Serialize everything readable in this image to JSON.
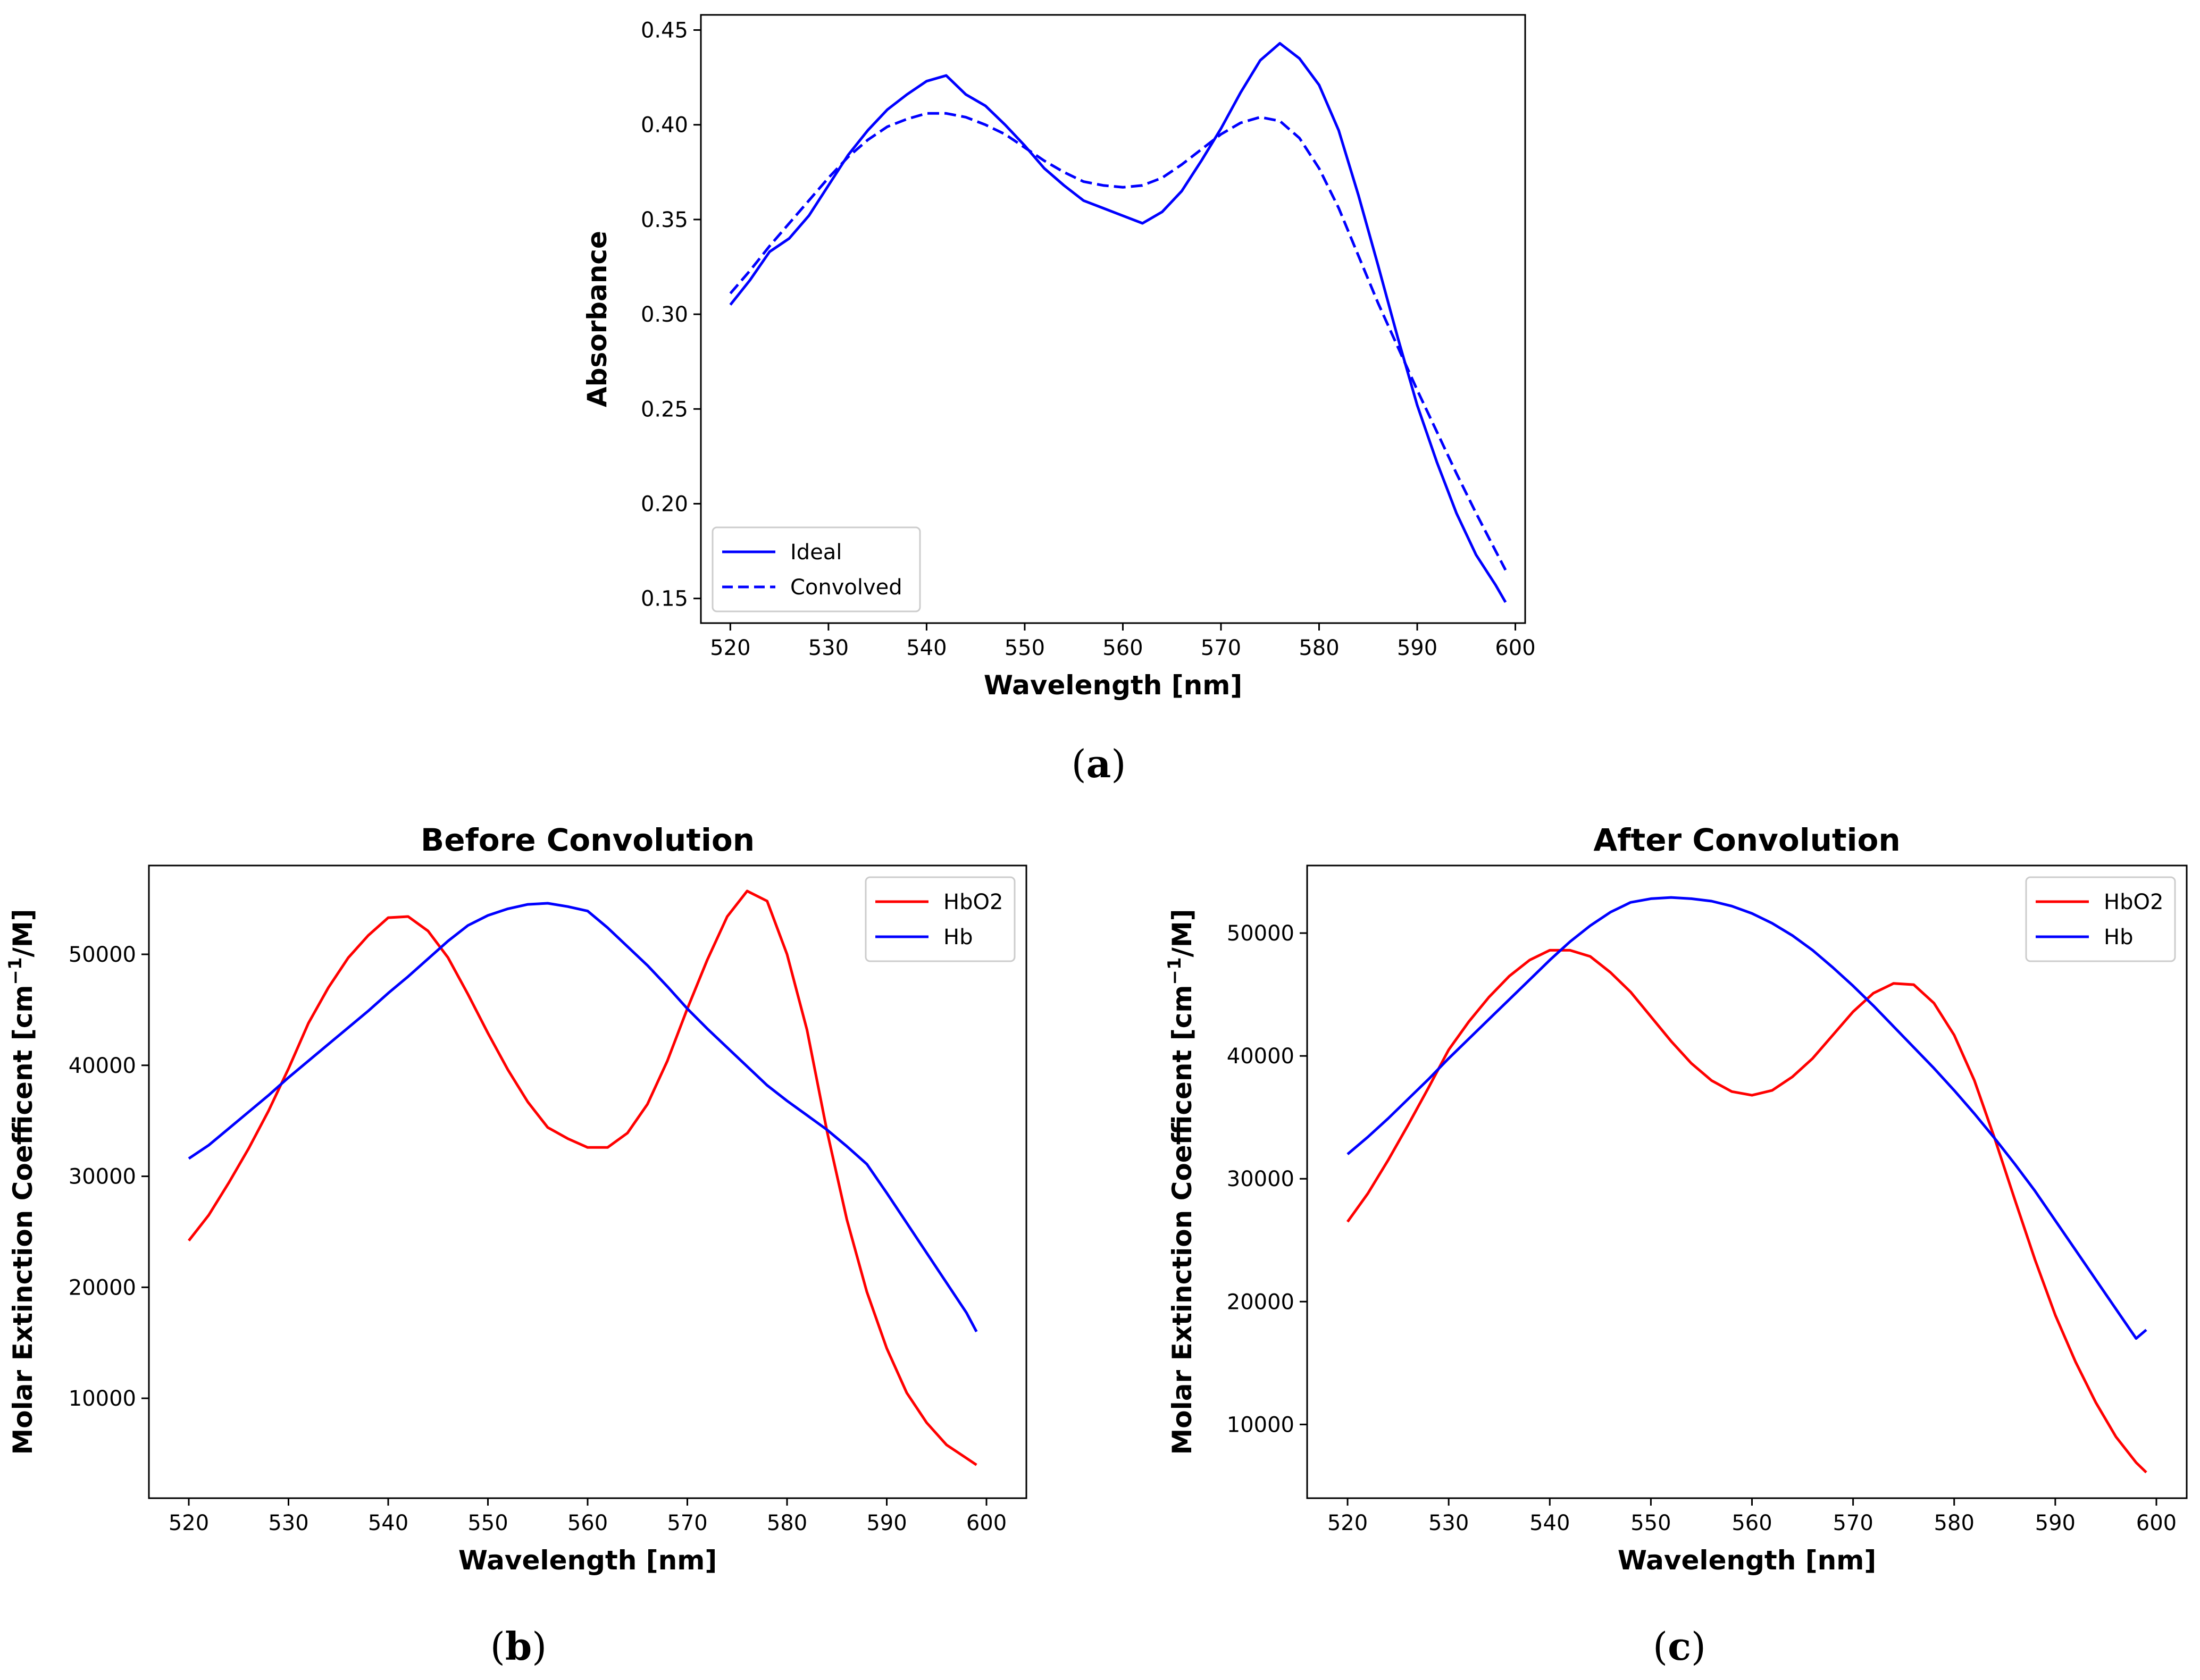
{
  "chart_data": [
    {
      "type": "line",
      "panel_label": "a",
      "title": "",
      "xlabel": "Wavelength [nm]",
      "ylabel": "Absorbance",
      "xlim": [
        517,
        601
      ],
      "ylim": [
        0.137,
        0.458
      ],
      "xticks": [
        520,
        530,
        540,
        550,
        560,
        570,
        580,
        590,
        600
      ],
      "yticks": [
        0.15,
        0.2,
        0.25,
        0.3,
        0.35,
        0.4,
        0.45
      ],
      "ytick_decimals": 2,
      "legend_position": "lower-left",
      "x": [
        520,
        522,
        524,
        526,
        528,
        530,
        532,
        534,
        536,
        538,
        540,
        542,
        544,
        546,
        548,
        550,
        552,
        554,
        556,
        558,
        560,
        562,
        564,
        566,
        568,
        570,
        572,
        574,
        576,
        578,
        580,
        582,
        584,
        586,
        588,
        590,
        592,
        594,
        596,
        598,
        599
      ],
      "series": [
        {
          "name": "Ideal",
          "color": "#0000ff",
          "style": "solid",
          "values": [
            0.305,
            0.318,
            0.333,
            0.34,
            0.352,
            0.368,
            0.384,
            0.397,
            0.408,
            0.416,
            0.423,
            0.426,
            0.416,
            0.41,
            0.4,
            0.389,
            0.377,
            0.368,
            0.36,
            0.356,
            0.352,
            0.348,
            0.354,
            0.365,
            0.381,
            0.398,
            0.417,
            0.434,
            0.443,
            0.435,
            0.421,
            0.397,
            0.363,
            0.326,
            0.288,
            0.252,
            0.222,
            0.195,
            0.173,
            0.157,
            0.148
          ]
        },
        {
          "name": "Convolved",
          "color": "#0000ff",
          "style": "dashed",
          "values": [
            0.311,
            0.323,
            0.336,
            0.348,
            0.36,
            0.372,
            0.383,
            0.392,
            0.399,
            0.403,
            0.406,
            0.406,
            0.404,
            0.4,
            0.395,
            0.388,
            0.381,
            0.375,
            0.37,
            0.368,
            0.367,
            0.368,
            0.372,
            0.379,
            0.387,
            0.395,
            0.401,
            0.404,
            0.402,
            0.393,
            0.377,
            0.356,
            0.331,
            0.306,
            0.283,
            0.26,
            0.238,
            0.216,
            0.195,
            0.175,
            0.165
          ]
        }
      ]
    },
    {
      "type": "line",
      "panel_label": "b",
      "title": "Before Convolution",
      "xlabel": "Wavelength [nm]",
      "ylabel": "Molar Extinction Coefficent [cm",
      "ylabel_sup": "−1",
      "ylabel_end": "/M]",
      "xlim": [
        516,
        604
      ],
      "ylim": [
        1000,
        58000
      ],
      "xticks": [
        520,
        530,
        540,
        550,
        560,
        570,
        580,
        590,
        600
      ],
      "yticks": [
        10000,
        20000,
        30000,
        40000,
        50000
      ],
      "ytick_decimals": 0,
      "legend_position": "upper-right",
      "x": [
        520,
        522,
        524,
        526,
        528,
        530,
        532,
        534,
        536,
        538,
        540,
        542,
        544,
        546,
        548,
        550,
        552,
        554,
        556,
        558,
        560,
        562,
        564,
        566,
        568,
        570,
        572,
        574,
        576,
        578,
        580,
        582,
        584,
        586,
        588,
        590,
        592,
        594,
        596,
        598,
        599
      ],
      "series": [
        {
          "name": "HbO2",
          "color": "#ff0000",
          "style": "solid",
          "values": [
            24200,
            26500,
            29400,
            32500,
            35900,
            39700,
            43800,
            47000,
            49700,
            51700,
            53300,
            53400,
            52100,
            49700,
            46400,
            42900,
            39600,
            36700,
            34400,
            33400,
            32600,
            32600,
            33900,
            36500,
            40400,
            45100,
            49500,
            53400,
            55700,
            54800,
            50000,
            43200,
            34100,
            26100,
            19600,
            14500,
            10500,
            7800,
            5800,
            4600,
            4000
          ]
        },
        {
          "name": "Hb",
          "color": "#0000ff",
          "style": "solid",
          "values": [
            31600,
            32800,
            34300,
            35800,
            37300,
            38900,
            40400,
            41900,
            43400,
            44900,
            46500,
            48000,
            49600,
            51200,
            52600,
            53500,
            54100,
            54500,
            54600,
            54300,
            53900,
            52400,
            50700,
            49000,
            47100,
            45100,
            43300,
            41600,
            39900,
            38200,
            36800,
            35500,
            34200,
            32700,
            31100,
            28500,
            25800,
            23100,
            20400,
            17700,
            16000
          ]
        }
      ]
    },
    {
      "type": "line",
      "panel_label": "c",
      "title": "After Convolution",
      "xlabel": "Wavelength [nm]",
      "ylabel": "Molar Extinction Coefficent [cm",
      "ylabel_sup": "−1",
      "ylabel_end": "/M]",
      "xlim": [
        516,
        603
      ],
      "ylim": [
        4000,
        55500
      ],
      "xticks": [
        520,
        530,
        540,
        550,
        560,
        570,
        580,
        590,
        600
      ],
      "yticks": [
        10000,
        20000,
        30000,
        40000,
        50000
      ],
      "ytick_decimals": 0,
      "legend_position": "upper-right",
      "x": [
        520,
        522,
        524,
        526,
        528,
        530,
        532,
        534,
        536,
        538,
        540,
        542,
        544,
        546,
        548,
        550,
        552,
        554,
        556,
        558,
        560,
        562,
        564,
        566,
        568,
        570,
        572,
        574,
        576,
        578,
        580,
        582,
        584,
        586,
        588,
        590,
        592,
        594,
        596,
        598,
        599
      ],
      "series": [
        {
          "name": "HbO2",
          "color": "#ff0000",
          "style": "solid",
          "values": [
            26500,
            28800,
            31500,
            34400,
            37400,
            40500,
            42800,
            44800,
            46500,
            47800,
            48600,
            48600,
            48100,
            46800,
            45200,
            43200,
            41200,
            39400,
            38000,
            37100,
            36800,
            37200,
            38300,
            39800,
            41700,
            43600,
            45100,
            45900,
            45800,
            44300,
            41700,
            38000,
            33300,
            28300,
            23400,
            18900,
            15100,
            11800,
            9000,
            6900,
            6100
          ]
        },
        {
          "name": "Hb",
          "color": "#0000ff",
          "style": "solid",
          "values": [
            32000,
            33400,
            34900,
            36500,
            38100,
            39800,
            41400,
            43000,
            44600,
            46200,
            47800,
            49300,
            50600,
            51700,
            52500,
            52800,
            52900,
            52800,
            52600,
            52200,
            51600,
            50800,
            49800,
            48600,
            47200,
            45700,
            44100,
            42400,
            40700,
            39000,
            37200,
            35300,
            33300,
            31200,
            29000,
            26600,
            24200,
            21800,
            19400,
            17000,
            17700
          ]
        }
      ]
    }
  ]
}
